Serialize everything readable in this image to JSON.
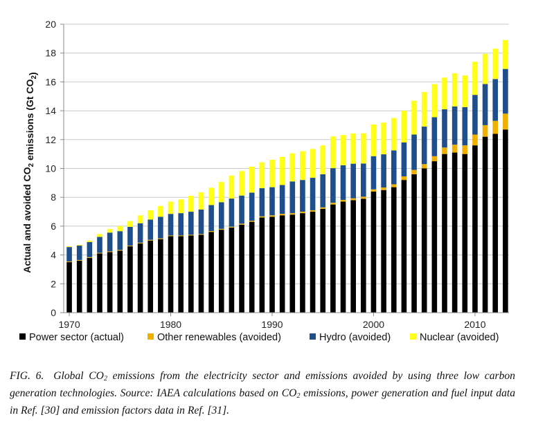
{
  "chart_data": {
    "type": "bar",
    "stacked": true,
    "x": [
      1970,
      1971,
      1972,
      1973,
      1974,
      1975,
      1976,
      1977,
      1978,
      1979,
      1980,
      1981,
      1982,
      1983,
      1984,
      1985,
      1986,
      1987,
      1988,
      1989,
      1990,
      1991,
      1992,
      1993,
      1994,
      1995,
      1996,
      1997,
      1998,
      1999,
      2000,
      2001,
      2002,
      2003,
      2004,
      2005,
      2006,
      2007,
      2008,
      2009,
      2010,
      2011,
      2012,
      2013
    ],
    "xticks": [
      "1970",
      "1980",
      "1990",
      "2000",
      "2010"
    ],
    "ylim": [
      0,
      20
    ],
    "yticks": [
      "0",
      "2",
      "4",
      "6",
      "8",
      "10",
      "12",
      "14",
      "16",
      "18",
      "20"
    ],
    "ylabel": "Actual and avoided CO2 emissions (Gt CO2)",
    "ylabel_parts": {
      "pre": "Actual and avoided CO",
      "sub": "2",
      "mid": " emissions (Gt CO",
      "sub2": "2",
      "post": ")"
    },
    "grid": true,
    "legend_position": "bottom",
    "series": [
      {
        "name": "Power sector (actual)",
        "color": "#000000",
        "values": [
          3.5,
          3.6,
          3.8,
          4.1,
          4.2,
          4.3,
          4.6,
          4.8,
          5.0,
          5.1,
          5.3,
          5.3,
          5.35,
          5.4,
          5.6,
          5.75,
          5.9,
          6.1,
          6.3,
          6.6,
          6.65,
          6.75,
          6.8,
          6.9,
          7.0,
          7.2,
          7.5,
          7.7,
          7.8,
          7.9,
          8.4,
          8.5,
          8.7,
          9.2,
          9.6,
          10.0,
          10.5,
          11.0,
          11.1,
          11.0,
          11.6,
          12.2,
          12.4,
          12.7
        ]
      },
      {
        "name": "Other renewables (avoided)",
        "color": "#f0b000",
        "values": [
          0.05,
          0.05,
          0.05,
          0.05,
          0.05,
          0.05,
          0.05,
          0.05,
          0.05,
          0.05,
          0.05,
          0.05,
          0.05,
          0.05,
          0.06,
          0.06,
          0.06,
          0.07,
          0.07,
          0.08,
          0.1,
          0.1,
          0.1,
          0.1,
          0.1,
          0.1,
          0.12,
          0.12,
          0.13,
          0.14,
          0.15,
          0.18,
          0.2,
          0.25,
          0.3,
          0.3,
          0.35,
          0.45,
          0.55,
          0.6,
          0.75,
          0.8,
          0.9,
          1.1
        ]
      },
      {
        "name": "Hydro (avoided)",
        "color": "#1f4e8c",
        "values": [
          1.0,
          1.0,
          1.05,
          1.1,
          1.3,
          1.3,
          1.3,
          1.35,
          1.4,
          1.5,
          1.5,
          1.55,
          1.6,
          1.7,
          1.8,
          1.85,
          1.95,
          1.95,
          1.95,
          1.95,
          1.95,
          2.0,
          2.2,
          2.2,
          2.25,
          2.3,
          2.4,
          2.4,
          2.4,
          2.3,
          2.3,
          2.3,
          2.35,
          2.35,
          2.45,
          2.6,
          2.7,
          2.65,
          2.65,
          2.65,
          2.75,
          2.85,
          2.9,
          3.1
        ]
      },
      {
        "name": "Nuclear (avoided)",
        "color": "#ffff1a",
        "values": [
          0.05,
          0.05,
          0.1,
          0.2,
          0.25,
          0.35,
          0.4,
          0.55,
          0.65,
          0.75,
          0.85,
          0.95,
          1.1,
          1.2,
          1.2,
          1.4,
          1.6,
          1.7,
          1.8,
          1.8,
          1.9,
          1.95,
          1.95,
          2.0,
          2.0,
          2.0,
          2.2,
          2.1,
          2.1,
          2.1,
          2.2,
          2.2,
          2.25,
          2.2,
          2.35,
          2.4,
          2.3,
          2.2,
          2.3,
          2.2,
          2.3,
          2.1,
          2.1,
          2.0
        ]
      }
    ]
  },
  "caption": {
    "fig_label": "FIG. 6.",
    "text_a": "Global CO",
    "sub_a": "2",
    "text_b": " emissions from the electricity sector and emissions avoided by using three low carbon generation technologies. Source: IAEA calculations based on CO",
    "sub_b": "2",
    "text_c": " emissions, power generation and fuel input data in Ref. [30] and emission factors data in Ref. [31]."
  }
}
